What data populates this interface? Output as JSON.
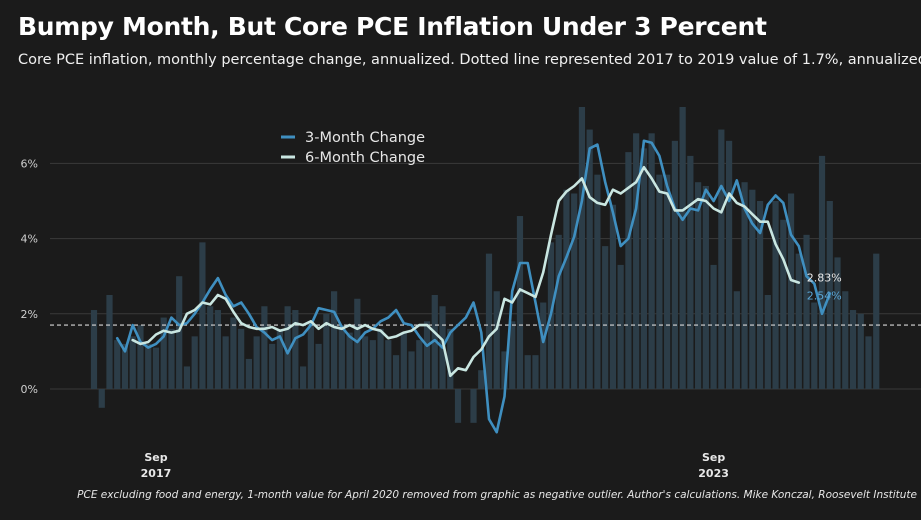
{
  "title": "Bumpy Month, But Core PCE Inflation Under 3 Percent",
  "subtitle": "Core PCE inflation, monthly percentage change, annualized. Dotted line represented 2017 to 2019 value of 1.7%, annualized.",
  "footnote": "PCE excluding food and energy, 1-month value for April 2020 removed from graphic as negative outlier. Author's calculations. Mike Konczal, Roosevelt Institute",
  "colors": {
    "background": "#1b1b1b",
    "bars": "#2c3d48",
    "three_month": "#3f8fc0",
    "six_month": "#c9e6e1",
    "end_label_3m": "#5aa6d6",
    "end_label_6m": "#e8e8e8"
  },
  "chart_data": {
    "type": "bar+line",
    "x_start": "2017-01",
    "x_end": "2023-09",
    "ylim": [
      -1.2,
      7.5
    ],
    "yticks": [
      0,
      2,
      4,
      6
    ],
    "ytick_labels": [
      "0%",
      "2%",
      "4%",
      "6%"
    ],
    "xticks": [
      {
        "month": "2017-09",
        "label": [
          "Sep",
          "2017"
        ]
      },
      {
        "month": "2023-09",
        "label": [
          "Sep",
          "2023"
        ]
      }
    ],
    "reference_line": {
      "value": 1.7,
      "style": "dashed"
    },
    "legend": {
      "position": "upper-left",
      "entries": [
        "3-Month Change",
        "6-Month Change"
      ]
    },
    "series": [
      {
        "name": "1-Month Change",
        "kind": "bar",
        "start": "2017-01",
        "values": [
          2.1,
          -0.5,
          2.5,
          1.3,
          1.2,
          1.4,
          1.7,
          1.2,
          1.1,
          1.9,
          1.6,
          3.0,
          0.6,
          1.4,
          3.9,
          2.2,
          2.1,
          1.4,
          1.9,
          1.6,
          0.8,
          1.4,
          2.2,
          1.2,
          1.6,
          2.2,
          2.1,
          0.6,
          1.8,
          1.2,
          2.0,
          2.6,
          1.7,
          1.5,
          2.4,
          1.4,
          1.3,
          1.6,
          1.3,
          0.9,
          1.5,
          1.0,
          1.3,
          1.8,
          2.5,
          2.2,
          1.6,
          -0.9,
          null,
          -0.9,
          0.5,
          3.6,
          2.6,
          1.0,
          1.8,
          4.6,
          0.9,
          0.9,
          2.3,
          3.9,
          4.1,
          5.3,
          5.2,
          7.5,
          6.9,
          5.7,
          3.8,
          4.9,
          3.3,
          6.3,
          6.8,
          6.4,
          6.8,
          5.7,
          5.7,
          6.6,
          7.5,
          6.2,
          5.5,
          5.4,
          3.3,
          6.9,
          6.6,
          2.6,
          5.5,
          5.3,
          5.0,
          2.5,
          5.0,
          4.5,
          5.2,
          3.6,
          4.1,
          2.3,
          6.2,
          5.0,
          3.5,
          2.6,
          2.1,
          2.0,
          1.4,
          3.6
        ]
      },
      {
        "name": "3-Month Change",
        "kind": "line",
        "start": "2017-04",
        "values": [
          1.35,
          1.0,
          1.7,
          1.25,
          1.1,
          1.2,
          1.4,
          1.9,
          1.7,
          1.75,
          2.0,
          2.3,
          2.65,
          2.95,
          2.5,
          2.2,
          2.3,
          2.0,
          1.65,
          1.5,
          1.3,
          1.4,
          0.95,
          1.35,
          1.45,
          1.7,
          2.15,
          2.1,
          2.05,
          1.65,
          1.4,
          1.25,
          1.5,
          1.6,
          1.8,
          1.9,
          2.1,
          1.75,
          1.7,
          1.4,
          1.15,
          1.3,
          1.1,
          1.5,
          1.7,
          1.9,
          2.3,
          1.5,
          -0.8,
          -1.15,
          -0.2,
          2.6,
          3.35,
          3.35,
          2.3,
          1.25,
          2.0,
          3.0,
          3.5,
          4.05,
          5.0,
          6.4,
          6.5,
          5.5,
          4.7,
          3.8,
          4.0,
          4.8,
          6.6,
          6.55,
          6.2,
          5.4,
          4.8,
          4.5,
          4.8,
          4.75,
          5.3,
          5.0,
          5.4,
          5.0,
          5.55,
          4.8,
          4.4,
          4.15,
          4.9,
          5.15,
          4.95,
          4.1,
          3.8,
          3.0,
          2.8,
          2.0,
          2.54
        ]
      },
      {
        "name": "6-Month Change",
        "kind": "line",
        "start": "2017-06",
        "values": [
          1.3,
          1.2,
          1.25,
          1.45,
          1.55,
          1.5,
          1.55,
          2.0,
          2.1,
          2.3,
          2.25,
          2.5,
          2.4,
          2.05,
          1.75,
          1.65,
          1.6,
          1.6,
          1.65,
          1.55,
          1.6,
          1.75,
          1.7,
          1.8,
          1.6,
          1.75,
          1.65,
          1.6,
          1.7,
          1.6,
          1.7,
          1.6,
          1.55,
          1.35,
          1.4,
          1.5,
          1.55,
          1.7,
          1.7,
          1.5,
          1.3,
          0.35,
          0.55,
          0.5,
          0.85,
          1.05,
          1.4,
          1.6,
          2.4,
          2.3,
          2.65,
          2.55,
          2.45,
          3.1,
          4.1,
          5.0,
          5.25,
          5.4,
          5.6,
          5.1,
          4.95,
          4.9,
          5.3,
          5.2,
          5.35,
          5.5,
          5.9,
          5.6,
          5.25,
          5.2,
          4.75,
          4.75,
          4.9,
          5.05,
          5.0,
          4.8,
          4.7,
          5.2,
          4.95,
          4.85,
          4.65,
          4.45,
          4.45,
          3.85,
          3.45,
          2.9,
          2.83
        ]
      }
    ],
    "end_labels": {
      "six_month": "2.83%",
      "three_month": "2.54%"
    }
  }
}
